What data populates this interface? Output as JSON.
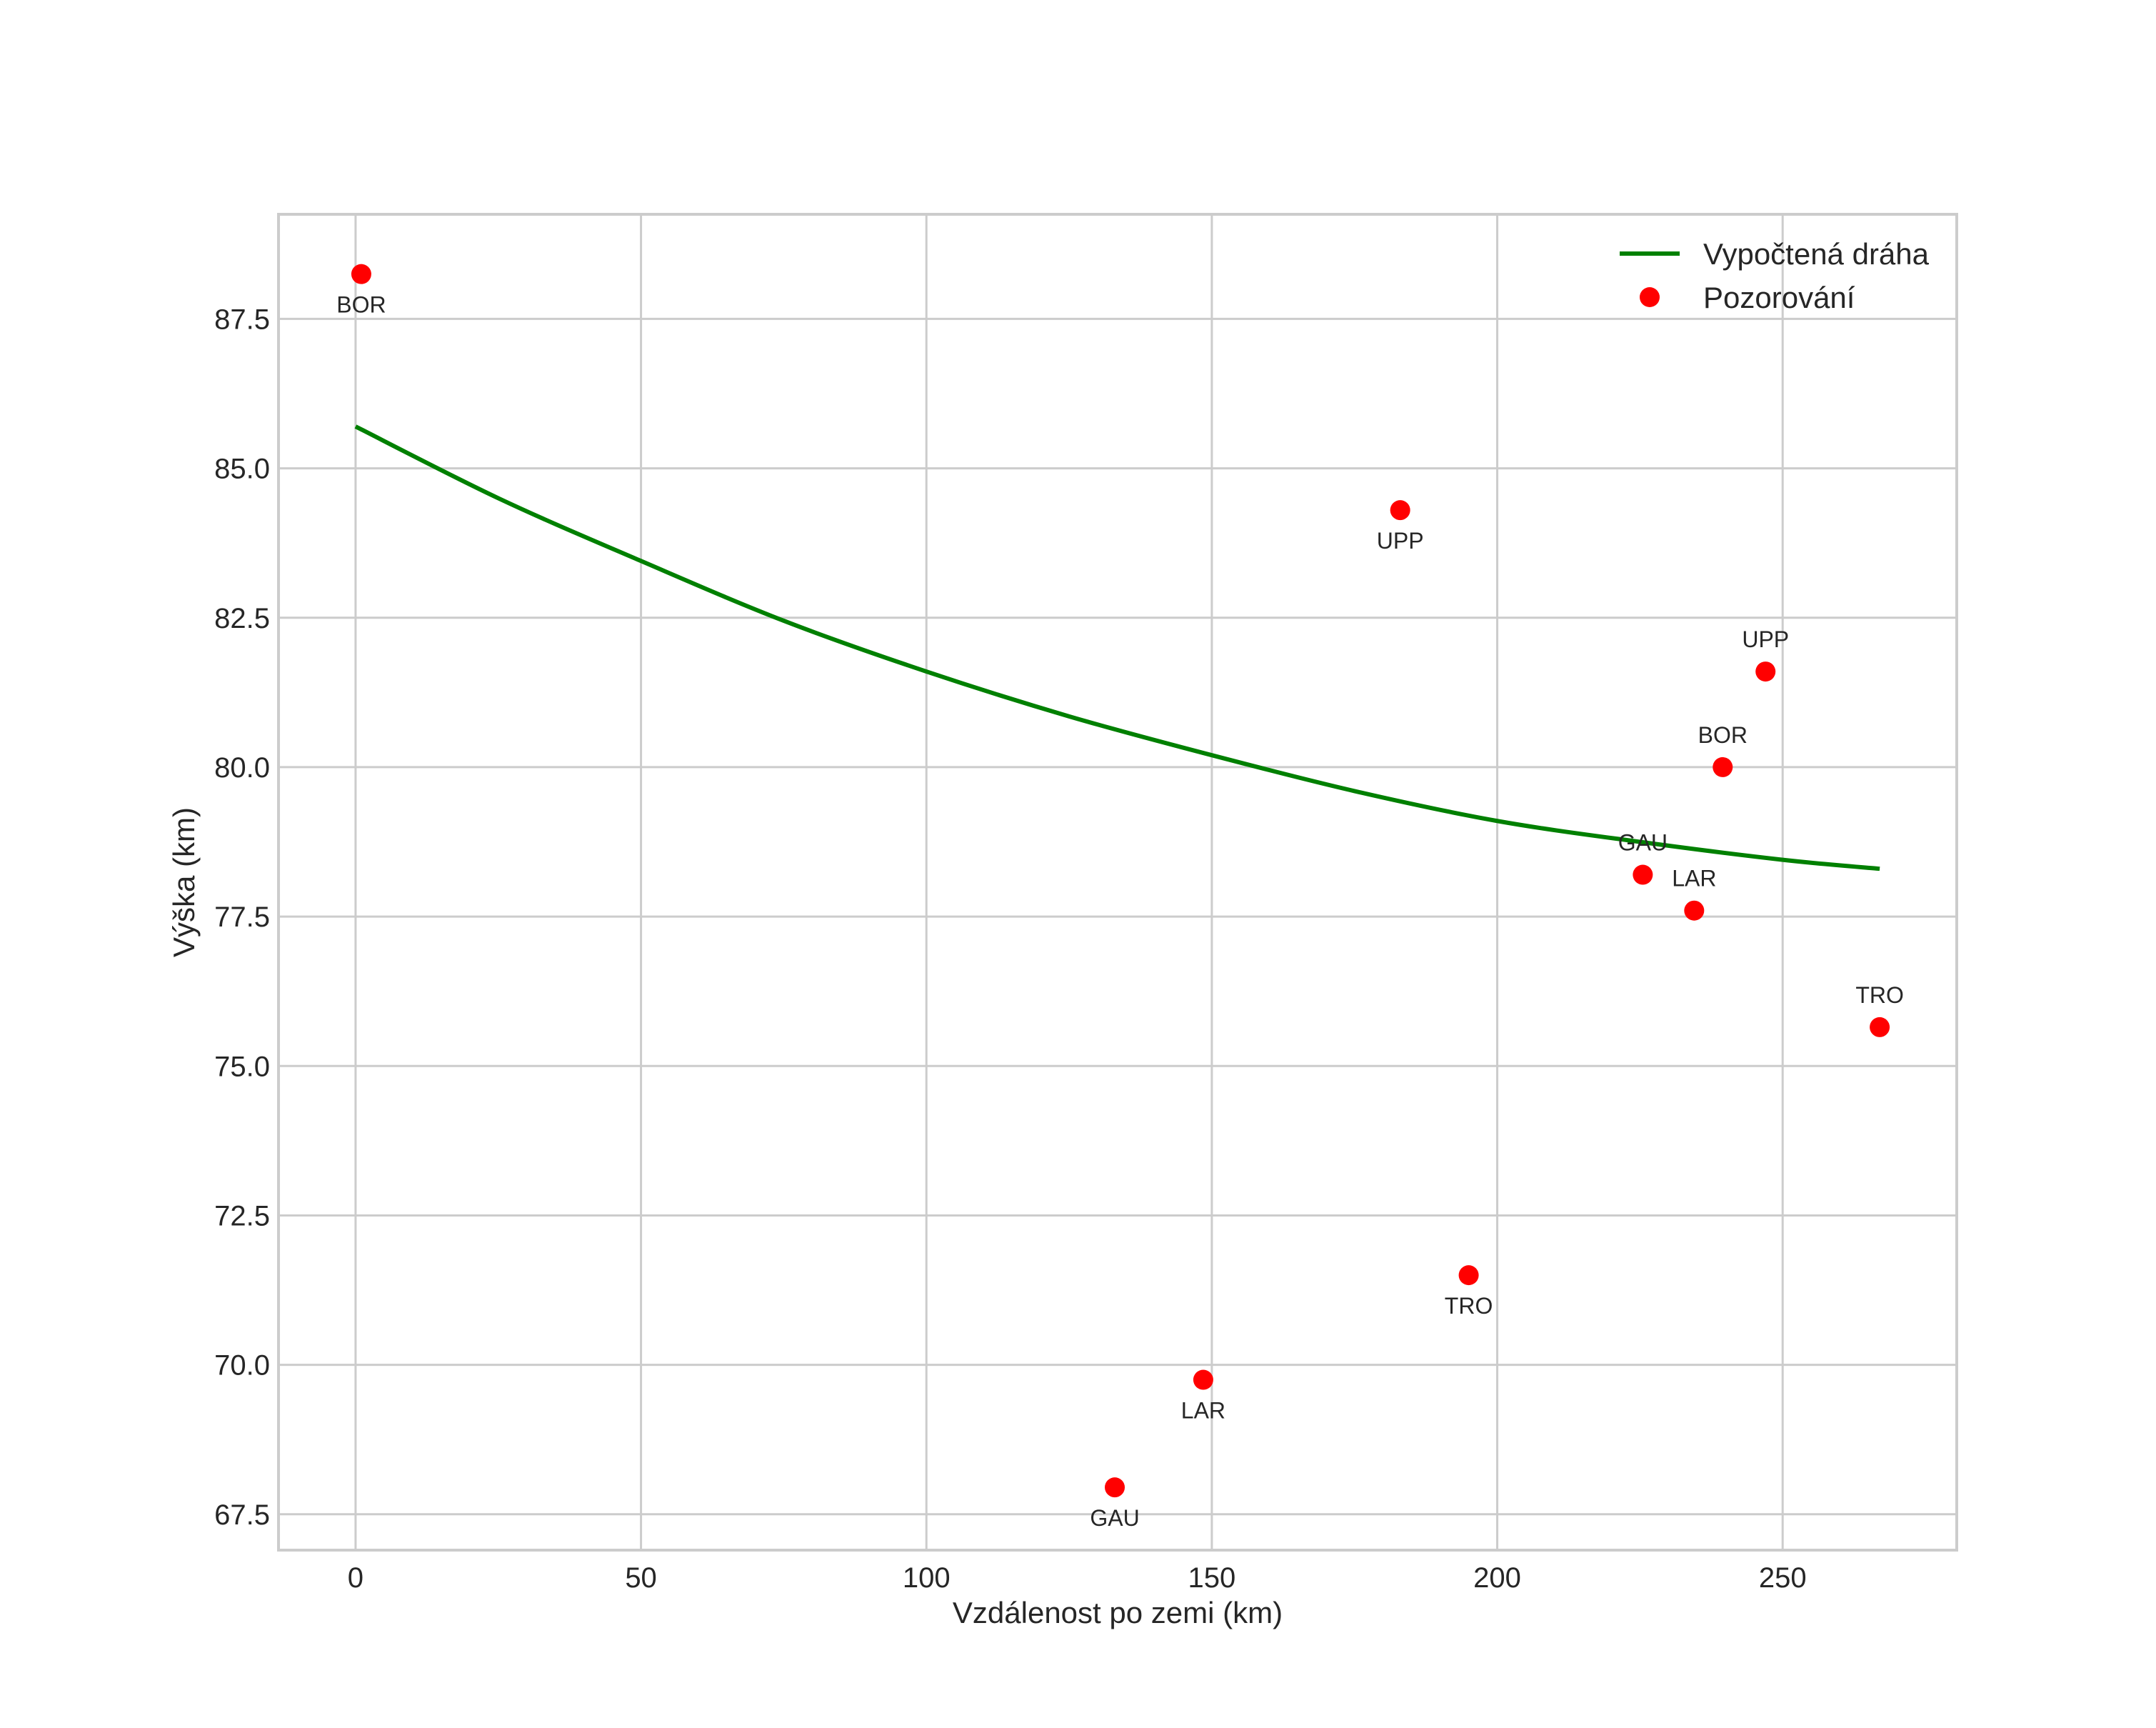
{
  "chart_data": {
    "type": "line+scatter",
    "title": "",
    "xlabel": "Vzdálenost po zemi (km)",
    "ylabel": "Výška (km)",
    "xlim": [
      -13.5,
      280.5
    ],
    "ylim": [
      66.9,
      89.25
    ],
    "xticks": [
      0,
      50,
      100,
      150,
      200,
      250
    ],
    "xtick_labels": [
      "0",
      "50",
      "100",
      "150",
      "200",
      "250"
    ],
    "yticks": [
      67.5,
      70.0,
      72.5,
      75.0,
      77.5,
      80.0,
      82.5,
      85.0,
      87.5
    ],
    "ytick_labels": [
      "67.5",
      "70.0",
      "72.5",
      "75.0",
      "77.5",
      "80.0",
      "82.5",
      "85.0",
      "87.5"
    ],
    "grid": true,
    "legend": {
      "location": "upper right",
      "entries": [
        "Vypočtená dráha",
        "Pozorování"
      ]
    },
    "series": [
      {
        "name": "Vypočtená dráha",
        "type": "line",
        "color": "#008000",
        "x": [
          0,
          25,
          50,
          75,
          100,
          125,
          150,
          175,
          200,
          225,
          250,
          267
        ],
        "y": [
          85.7,
          84.5,
          83.45,
          82.45,
          81.6,
          80.85,
          80.2,
          79.6,
          79.1,
          78.75,
          78.45,
          78.3
        ]
      },
      {
        "name": "Pozorování",
        "type": "scatter",
        "color": "#ff0000",
        "points": [
          {
            "x": 1,
            "y": 88.25,
            "label": "BOR",
            "label_pos": "below"
          },
          {
            "x": 183,
            "y": 84.3,
            "label": "UPP",
            "label_pos": "below"
          },
          {
            "x": 247,
            "y": 81.6,
            "label": "UPP",
            "label_pos": "above"
          },
          {
            "x": 239.5,
            "y": 80.0,
            "label": "BOR",
            "label_pos": "above"
          },
          {
            "x": 225.5,
            "y": 78.2,
            "label": "GAU",
            "label_pos": "above"
          },
          {
            "x": 234.5,
            "y": 77.6,
            "label": "LAR",
            "label_pos": "above"
          },
          {
            "x": 267,
            "y": 75.65,
            "label": "TRO",
            "label_pos": "above"
          },
          {
            "x": 195,
            "y": 71.5,
            "label": "TRO",
            "label_pos": "below"
          },
          {
            "x": 148.5,
            "y": 69.75,
            "label": "LAR",
            "label_pos": "below"
          },
          {
            "x": 133,
            "y": 67.95,
            "label": "GAU",
            "label_pos": "below"
          }
        ]
      }
    ]
  }
}
